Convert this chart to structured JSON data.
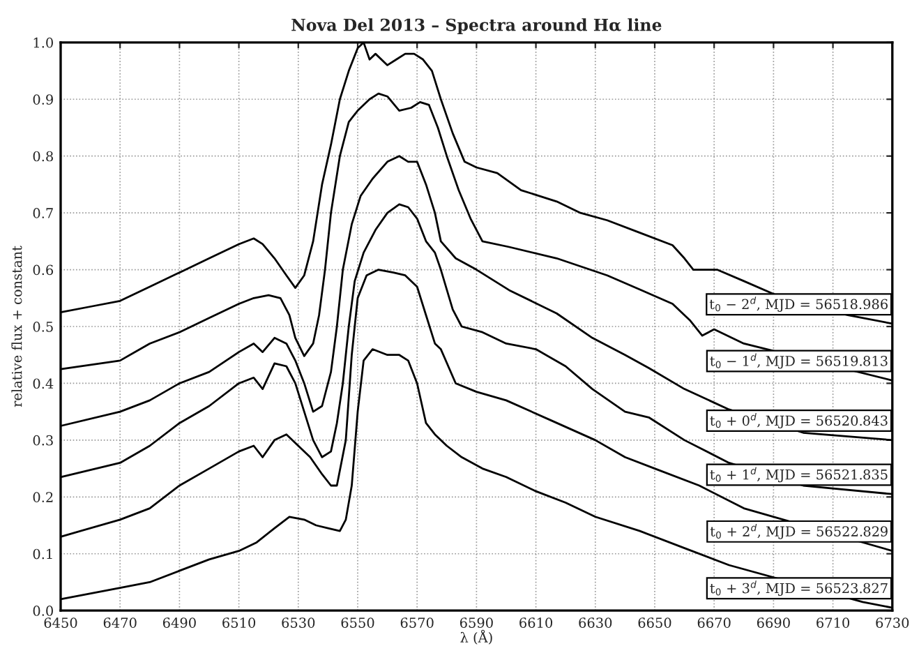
{
  "chart_data": {
    "type": "line",
    "title": "Nova Del 2013 – Spectra around Hα line",
    "xlabel": "λ (Å)",
    "ylabel": "relative flux + constant",
    "xlim": [
      6450,
      6730
    ],
    "xticks": [
      6450,
      6470,
      6490,
      6510,
      6530,
      6550,
      6570,
      6590,
      6610,
      6630,
      6650,
      6670,
      6690,
      6710,
      6730
    ],
    "ylim": [
      0.0,
      1.0
    ],
    "yticks": [
      {
        "value": 0,
        "label": "0.0"
      },
      0.1,
      0.2,
      0.3,
      0.4,
      0.5,
      0.6,
      0.7,
      0.8,
      0.9,
      {
        "value": 1,
        "label": "1.0"
      }
    ],
    "grid": true,
    "legend": false,
    "marker": "none",
    "line_style": "solid",
    "series": [
      {
        "name": "t$_{0}$ − 2$^{d}$, MJD = 56518.986",
        "color": "#000000",
        "x": [
          6450,
          6460,
          6470,
          6480,
          6490,
          6500,
          6510,
          6515,
          6518,
          6522,
          6526,
          6529,
          6532,
          6535,
          6538,
          6541,
          6544,
          6547,
          6550,
          6552,
          6554,
          6556,
          6560,
          6563,
          6566,
          6569,
          6572,
          6575,
          6578,
          6582,
          6586,
          6590,
          6597,
          6605,
          6617,
          6625,
          6634,
          6645,
          6656,
          6660,
          6663,
          6671,
          6680,
          6691,
          6715,
          6730
        ],
        "values": [
          0.525,
          0.535,
          0.545,
          0.57,
          0.595,
          0.62,
          0.645,
          0.655,
          0.645,
          0.62,
          0.59,
          0.568,
          0.59,
          0.65,
          0.75,
          0.82,
          0.9,
          0.95,
          0.99,
          1.0,
          0.97,
          0.98,
          0.96,
          0.97,
          0.98,
          0.98,
          0.97,
          0.95,
          0.9,
          0.84,
          0.79,
          0.78,
          0.77,
          0.74,
          0.72,
          0.7,
          0.687,
          0.665,
          0.643,
          0.62,
          0.6,
          0.6,
          0.58,
          0.555,
          0.52,
          0.505
        ]
      },
      {
        "name": "t$_{0}$ − 1$^{d}$, MJD = 56519.813",
        "color": "#000000",
        "x": [
          6450,
          6470,
          6480,
          6490,
          6500,
          6510,
          6515,
          6520,
          6524,
          6527,
          6529,
          6532,
          6535,
          6537,
          6539,
          6541,
          6544,
          6547,
          6550,
          6554,
          6557,
          6560,
          6564,
          6568,
          6571,
          6574,
          6577,
          6580,
          6584,
          6588,
          6592,
          6601,
          6617,
          6634,
          6645,
          6656,
          6662,
          6666,
          6670,
          6680,
          6730
        ],
        "values": [
          0.425,
          0.44,
          0.47,
          0.49,
          0.515,
          0.54,
          0.55,
          0.555,
          0.55,
          0.52,
          0.48,
          0.448,
          0.47,
          0.52,
          0.6,
          0.7,
          0.8,
          0.86,
          0.88,
          0.9,
          0.91,
          0.905,
          0.88,
          0.885,
          0.895,
          0.89,
          0.85,
          0.8,
          0.74,
          0.69,
          0.65,
          0.64,
          0.62,
          0.59,
          0.565,
          0.54,
          0.51,
          0.484,
          0.495,
          0.47,
          0.405
        ]
      },
      {
        "name": "t$_{0}$ + 0$^{d}$, MJD = 56520.843",
        "color": "#000000",
        "x": [
          6450,
          6470,
          6480,
          6490,
          6500,
          6510,
          6515,
          6518,
          6522,
          6526,
          6529,
          6532,
          6535,
          6538,
          6541,
          6543,
          6545,
          6548,
          6551,
          6555,
          6560,
          6564,
          6567,
          6570,
          6573,
          6576,
          6578,
          6583,
          6590,
          6601,
          6617,
          6629,
          6640,
          6648,
          6660,
          6675,
          6700,
          6730
        ],
        "values": [
          0.325,
          0.35,
          0.37,
          0.4,
          0.42,
          0.455,
          0.47,
          0.455,
          0.48,
          0.47,
          0.44,
          0.4,
          0.35,
          0.36,
          0.42,
          0.5,
          0.6,
          0.68,
          0.73,
          0.76,
          0.79,
          0.8,
          0.79,
          0.79,
          0.75,
          0.7,
          0.65,
          0.62,
          0.6,
          0.564,
          0.523,
          0.48,
          0.45,
          0.427,
          0.39,
          0.354,
          0.313,
          0.3
        ]
      },
      {
        "name": "t$_{0}$ + 1$^{d}$, MJD = 56521.835",
        "color": "#000000",
        "x": [
          6450,
          6470,
          6480,
          6490,
          6500,
          6510,
          6515,
          6518,
          6522,
          6526,
          6529,
          6532,
          6535,
          6538,
          6541,
          6543,
          6545,
          6547,
          6549,
          6552,
          6556,
          6560,
          6564,
          6567,
          6570,
          6573,
          6576,
          6578,
          6582,
          6585,
          6592,
          6600,
          6610,
          6620,
          6629,
          6640,
          6648,
          6660,
          6675,
          6700,
          6730
        ],
        "values": [
          0.235,
          0.26,
          0.29,
          0.33,
          0.36,
          0.4,
          0.41,
          0.39,
          0.435,
          0.43,
          0.4,
          0.35,
          0.3,
          0.27,
          0.28,
          0.33,
          0.4,
          0.5,
          0.58,
          0.63,
          0.67,
          0.7,
          0.715,
          0.71,
          0.69,
          0.65,
          0.63,
          0.6,
          0.53,
          0.5,
          0.49,
          0.47,
          0.46,
          0.43,
          0.39,
          0.35,
          0.34,
          0.3,
          0.26,
          0.22,
          0.205
        ]
      },
      {
        "name": "t$_{0}$ + 2$^{d}$, MJD = 56522.829",
        "color": "#000000",
        "x": [
          6450,
          6470,
          6480,
          6490,
          6500,
          6510,
          6515,
          6518,
          6522,
          6526,
          6530,
          6534,
          6538,
          6541,
          6543,
          6546,
          6548,
          6550,
          6553,
          6557,
          6562,
          6566,
          6570,
          6573,
          6576,
          6578,
          6583,
          6590,
          6600,
          6615,
          6630,
          6640,
          6650,
          6665,
          6680,
          6730
        ],
        "values": [
          0.13,
          0.16,
          0.18,
          0.22,
          0.25,
          0.28,
          0.29,
          0.27,
          0.3,
          0.31,
          0.29,
          0.27,
          0.24,
          0.22,
          0.22,
          0.3,
          0.45,
          0.55,
          0.59,
          0.6,
          0.595,
          0.59,
          0.57,
          0.52,
          0.47,
          0.46,
          0.4,
          0.385,
          0.37,
          0.335,
          0.3,
          0.27,
          0.25,
          0.22,
          0.18,
          0.105
        ]
      },
      {
        "name": "t$_{0}$ + 3$^{d}$, MJD = 56523.827",
        "color": "#000000",
        "x": [
          6450,
          6470,
          6480,
          6490,
          6500,
          6510,
          6516,
          6522,
          6527,
          6532,
          6536,
          6540,
          6544,
          6546,
          6548,
          6550,
          6552,
          6555,
          6560,
          6564,
          6567,
          6570,
          6573,
          6576,
          6580,
          6585,
          6592,
          6600,
          6610,
          6620,
          6630,
          6645,
          6660,
          6675,
          6720,
          6730
        ],
        "values": [
          0.02,
          0.04,
          0.05,
          0.07,
          0.09,
          0.105,
          0.12,
          0.145,
          0.165,
          0.16,
          0.15,
          0.145,
          0.14,
          0.16,
          0.22,
          0.35,
          0.44,
          0.46,
          0.45,
          0.45,
          0.44,
          0.4,
          0.33,
          0.31,
          0.29,
          0.27,
          0.25,
          0.235,
          0.21,
          0.19,
          0.165,
          0.14,
          0.11,
          0.08,
          0.015,
          0.005
        ]
      }
    ]
  }
}
